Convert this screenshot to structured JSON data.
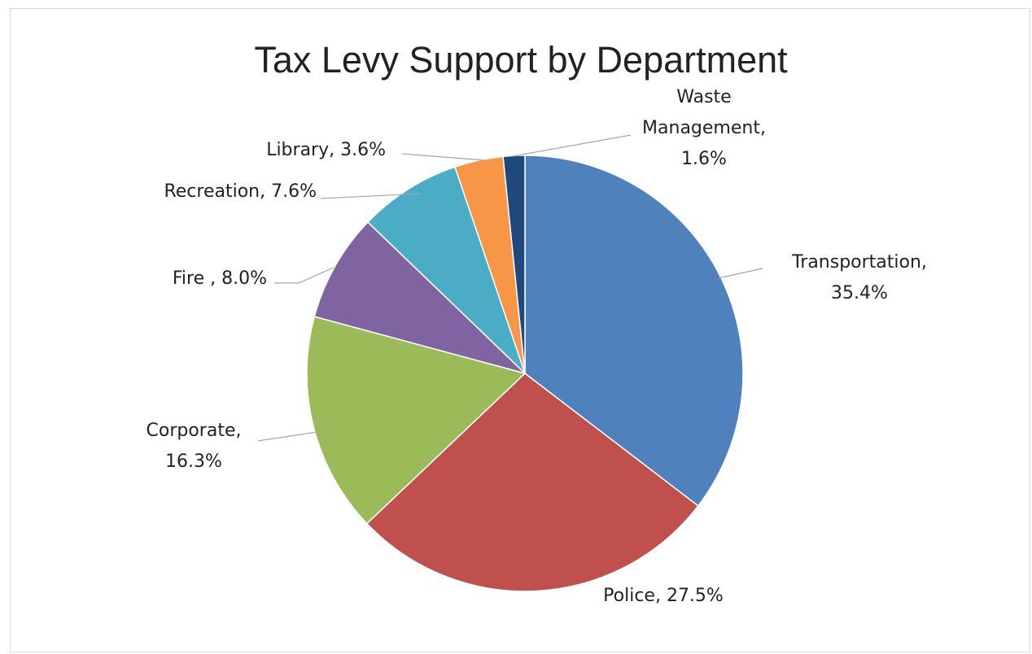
{
  "chart_data": {
    "type": "pie",
    "title": "Tax Levy Support by Department",
    "slices": [
      {
        "name": "Transportation",
        "value": 35.4,
        "label_lines": [
          "Transportation,",
          "35.4%"
        ],
        "color": "#4F81BD"
      },
      {
        "name": "Police",
        "value": 27.5,
        "label_lines": [
          "Police, 27.5%"
        ],
        "color": "#C0504D"
      },
      {
        "name": "Corporate",
        "value": 16.3,
        "label_lines": [
          "Corporate,",
          "16.3%"
        ],
        "color": "#9BBB59"
      },
      {
        "name": "Fire",
        "value": 8.0,
        "label_lines": [
          "Fire , 8.0%"
        ],
        "color": "#8064A2"
      },
      {
        "name": "Recreation",
        "value": 7.6,
        "label_lines": [
          "Recreation, 7.6%"
        ],
        "color": "#4BACC6"
      },
      {
        "name": "Library",
        "value": 3.6,
        "label_lines": [
          "Library, 3.6%"
        ],
        "color": "#F79646"
      },
      {
        "name": "Waste Management",
        "value": 1.6,
        "label_lines": [
          "Waste",
          "Management,",
          "1.6%"
        ],
        "color": "#1F497D"
      }
    ],
    "start_angle": "12 o'clock",
    "direction": "clockwise",
    "legend": "none",
    "data_labels": "outside with leader lines"
  }
}
